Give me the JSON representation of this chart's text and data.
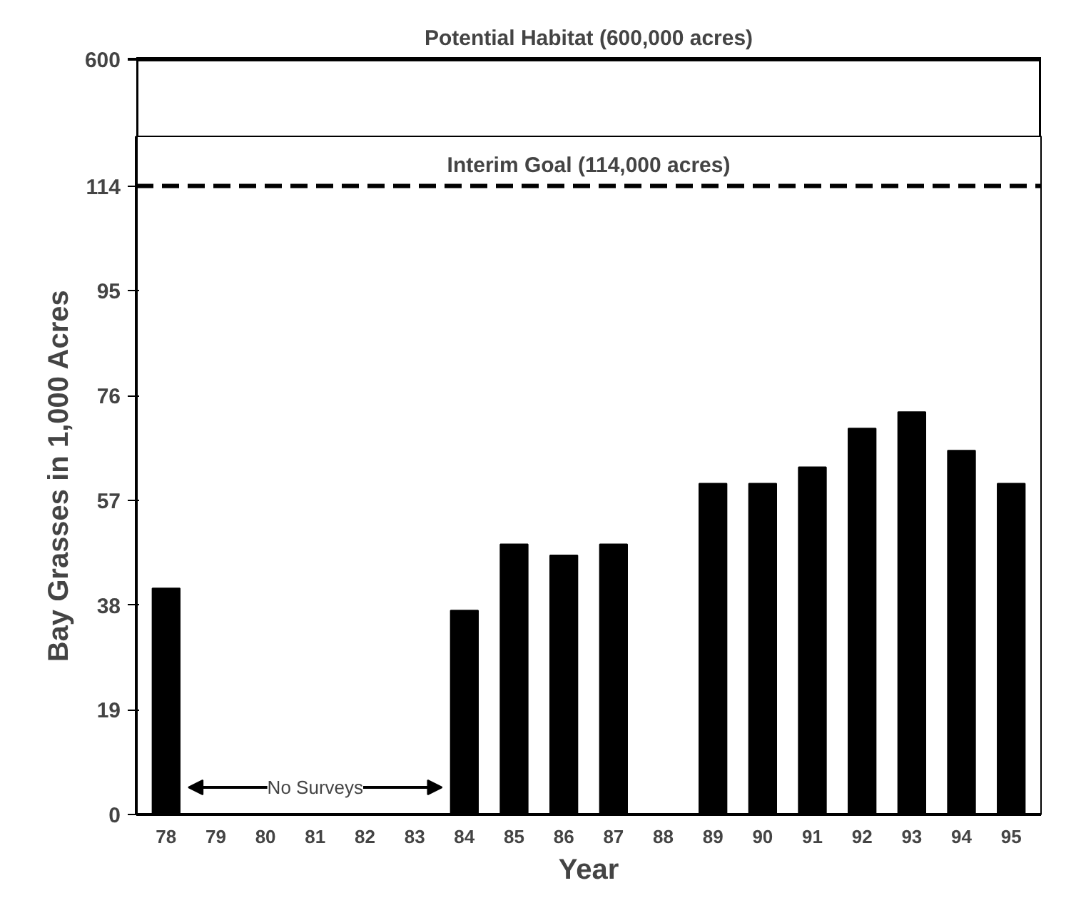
{
  "chart_data": [
    {
      "type": "other",
      "annotations": [
        "600",
        "Potential Habitat (600,000 acres)"
      ]
    },
    {
      "type": "bar",
      "xlabel": "Year",
      "ylabel": "Bay Grasses in 1,000 Acres",
      "categories": [
        "78",
        "79",
        "80",
        "81",
        "82",
        "83",
        "84",
        "85",
        "86",
        "87",
        "88",
        "89",
        "90",
        "91",
        "92",
        "93",
        "94",
        "95"
      ],
      "values": [
        41,
        null,
        null,
        null,
        null,
        null,
        37,
        49,
        47,
        49,
        null,
        60,
        60,
        63,
        70,
        73,
        66,
        60
      ],
      "color": "#000000",
      "ylim": [
        0,
        123
      ],
      "yticks": [
        0,
        19,
        38,
        57,
        76,
        95,
        114
      ],
      "grid": false,
      "ref_lines": [
        {
          "axis": "y",
          "value": 114,
          "label": "Interim Goal (114,000 acres)",
          "line_style": "dashed",
          "color": "#000000"
        }
      ],
      "annotations": [
        "No Surveys"
      ]
    }
  ]
}
